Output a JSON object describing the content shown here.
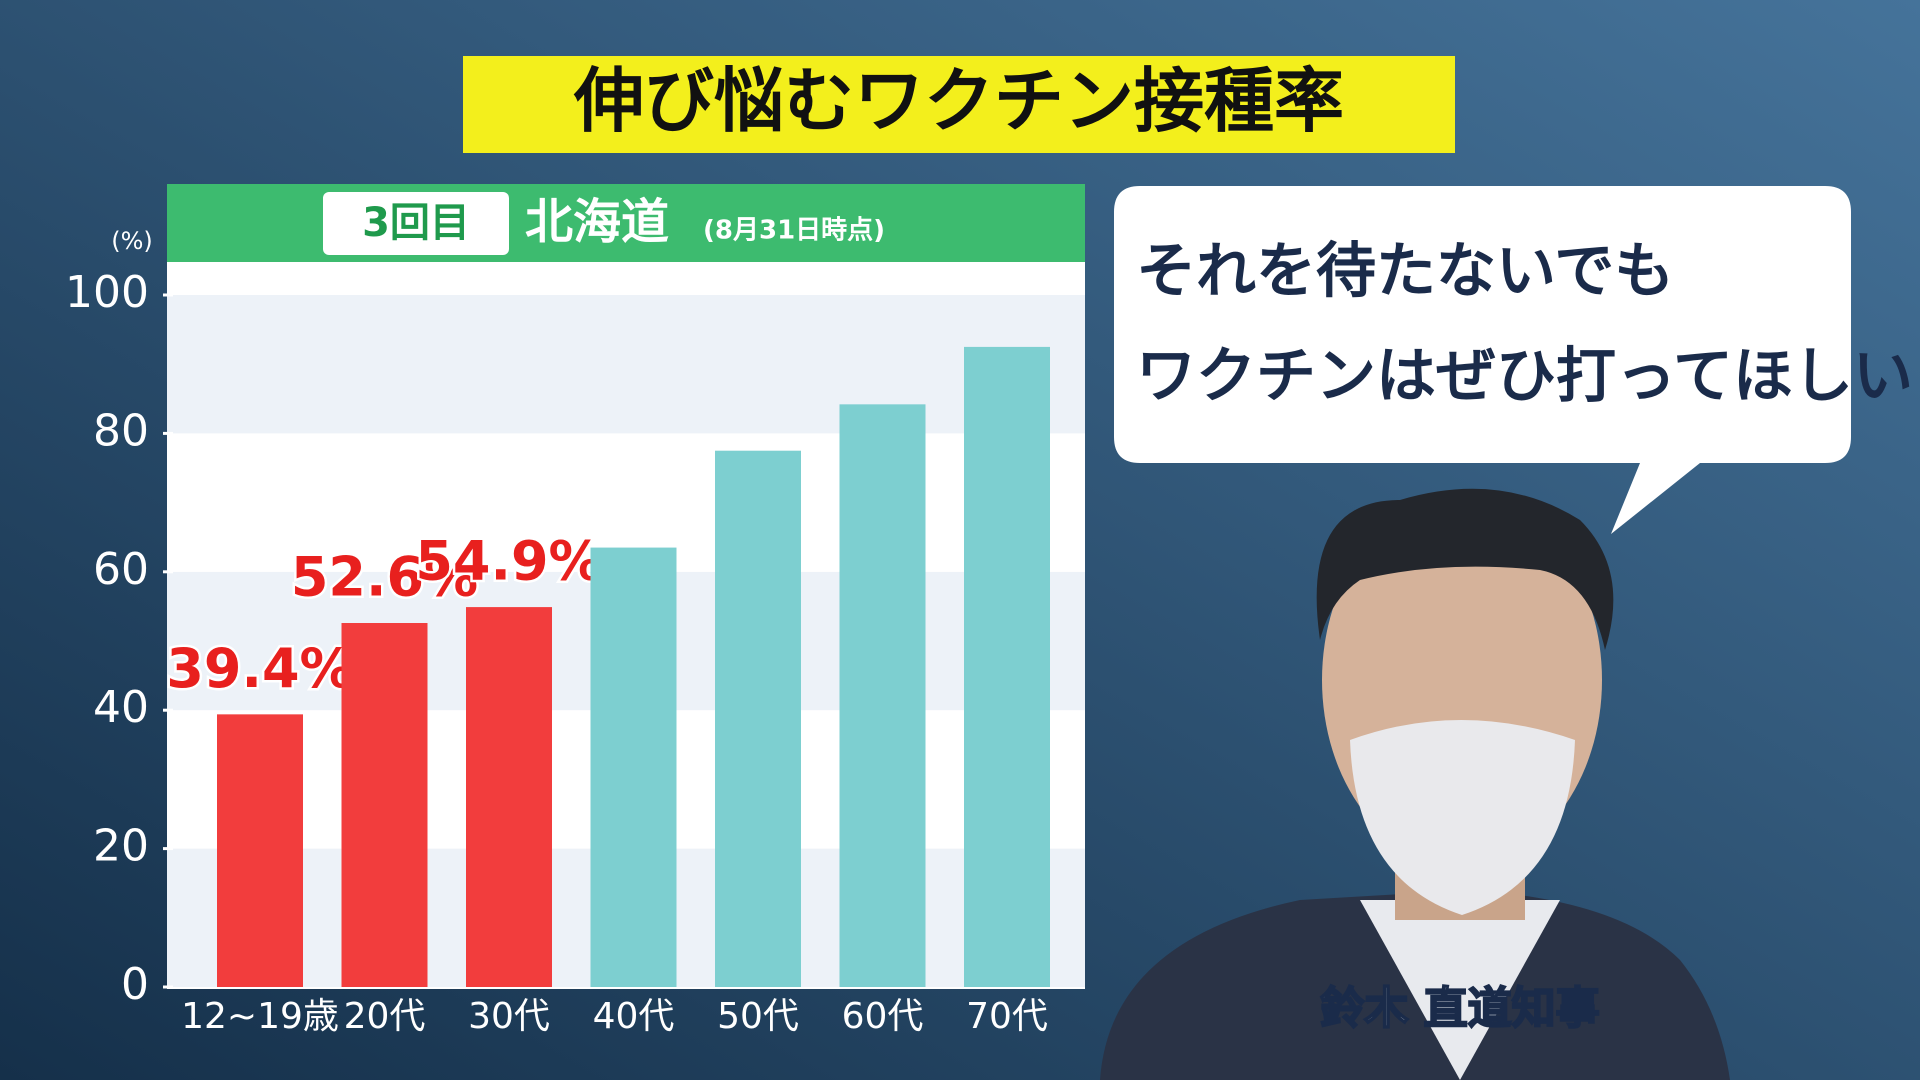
{
  "chart_data": {
    "type": "bar",
    "title": "伸び悩むワクチン接種率",
    "badge": "3回目",
    "region": "北海道",
    "date_note": "(8月31日時点)",
    "y_unit": "(%)",
    "categories": [
      "12~19歳",
      "20代",
      "30代",
      "40代",
      "50代",
      "60代",
      "70代"
    ],
    "values": [
      39.4,
      52.6,
      54.9,
      63.5,
      77.5,
      84.2,
      92.5
    ],
    "value_labels": [
      "39.4%",
      "52.6%",
      "54.9%",
      null,
      null,
      null,
      null
    ],
    "colors": [
      "#f23d3d",
      "#f23d3d",
      "#f23d3d",
      "#7dcfd0",
      "#7dcfd0",
      "#7dcfd0",
      "#7dcfd0"
    ],
    "ylim": [
      0,
      100
    ],
    "yticks": [
      0,
      20,
      40,
      60,
      80,
      100
    ],
    "grid": true
  },
  "speech": {
    "lines": [
      "それを待たないでも",
      "ワクチンはぜひ打ってほしい"
    ]
  },
  "caption": "鈴木 直道知事"
}
